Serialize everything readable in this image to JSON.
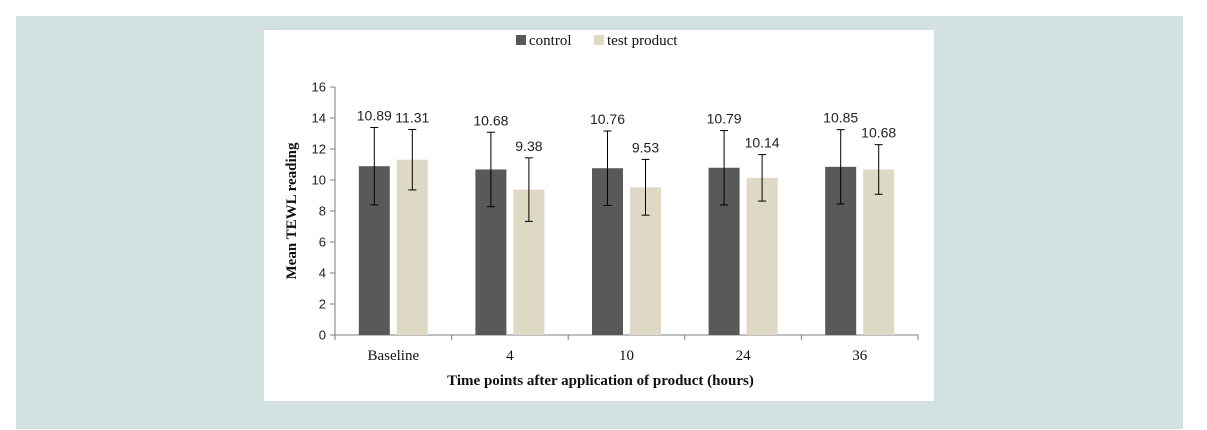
{
  "chart_data": {
    "type": "bar",
    "title": "",
    "xlabel": "Time points after application of product (hours)",
    "ylabel": "Mean TEWL reading",
    "categories": [
      "Baseline",
      "4",
      "10",
      "24",
      "36"
    ],
    "ylim": [
      0,
      16
    ],
    "yticks": [
      0,
      2,
      4,
      6,
      8,
      10,
      12,
      14,
      16
    ],
    "grid": false,
    "legend_position": "top-center",
    "series": [
      {
        "name": "control",
        "color": "#595959",
        "values": [
          10.89,
          10.68,
          10.76,
          10.79,
          10.85
        ],
        "error": [
          2.5,
          2.4,
          2.4,
          2.4,
          2.4
        ],
        "labels": [
          "10.89",
          "10.68",
          "10.76",
          "10.79",
          "10.85"
        ]
      },
      {
        "name": "test product",
        "color": "#ddd9c4",
        "values": [
          11.31,
          9.38,
          9.53,
          10.14,
          10.68
        ],
        "error": [
          1.95,
          2.05,
          1.8,
          1.5,
          1.6
        ],
        "labels": [
          "11.31",
          "9.38",
          "9.53",
          "10.14",
          "10.68"
        ]
      }
    ]
  }
}
